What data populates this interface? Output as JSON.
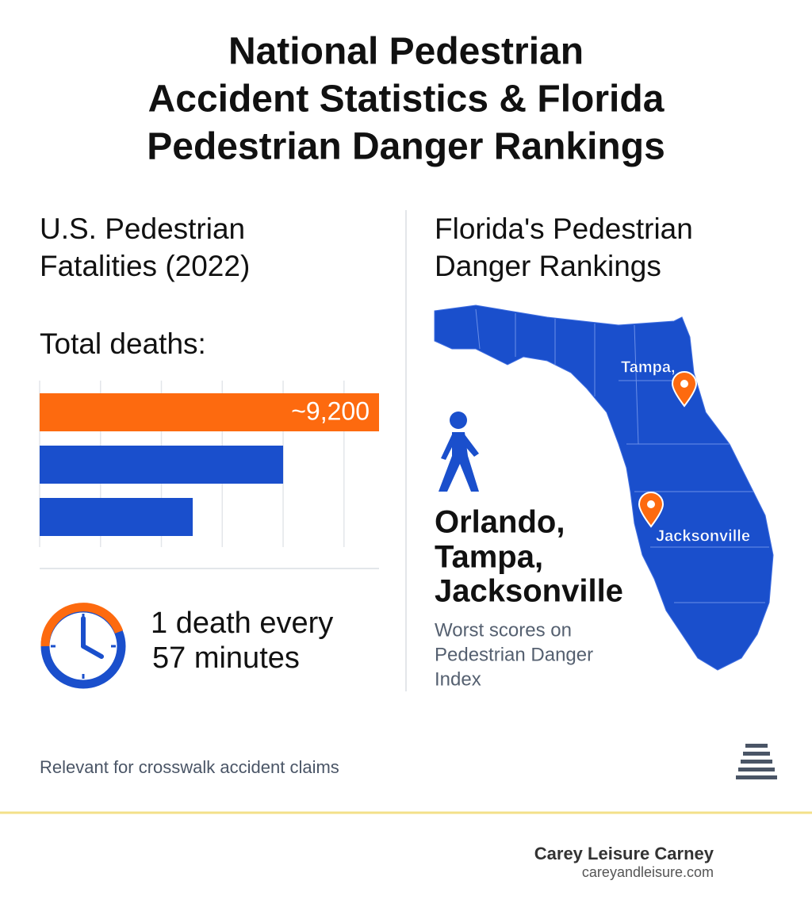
{
  "title": [
    "National Pedestrian",
    "Accident Statistics & Florida",
    "Pedestrian Danger Rankings"
  ],
  "left": {
    "heading": [
      "U.S. Pedestrian",
      "Fatalities (2022)"
    ],
    "subheading": "Total deaths:",
    "stat": [
      "1 death every",
      "57 minutes"
    ]
  },
  "chart_data": {
    "type": "bar",
    "orientation": "horizontal",
    "categories": [
      null,
      null,
      null
    ],
    "values": [
      9200,
      6600,
      4150
    ],
    "value_labels": [
      "~9,200",
      null,
      null
    ],
    "colors": [
      "#fd6a0f",
      "#1a4fcc",
      "#1a4fcc"
    ],
    "xlim": [
      0,
      9200
    ],
    "xticks": [
      0,
      1650,
      3300,
      4950,
      6600,
      8250
    ],
    "grid": true
  },
  "right": {
    "heading": [
      "Florida's Pedestrian",
      "Danger Rankings"
    ],
    "cities": [
      "Orlando,",
      "Tampa,",
      "Jacksonville"
    ],
    "note": [
      "Worst scores on",
      "Pedestrian Danger",
      "Index"
    ],
    "map_labels": [
      "Tampa,",
      "Jacksonville"
    ]
  },
  "footnote": "Relevant for crosswalk accident claims",
  "footer": {
    "name": "Carey Leisure Carney",
    "url": "careyandleisure.com"
  }
}
